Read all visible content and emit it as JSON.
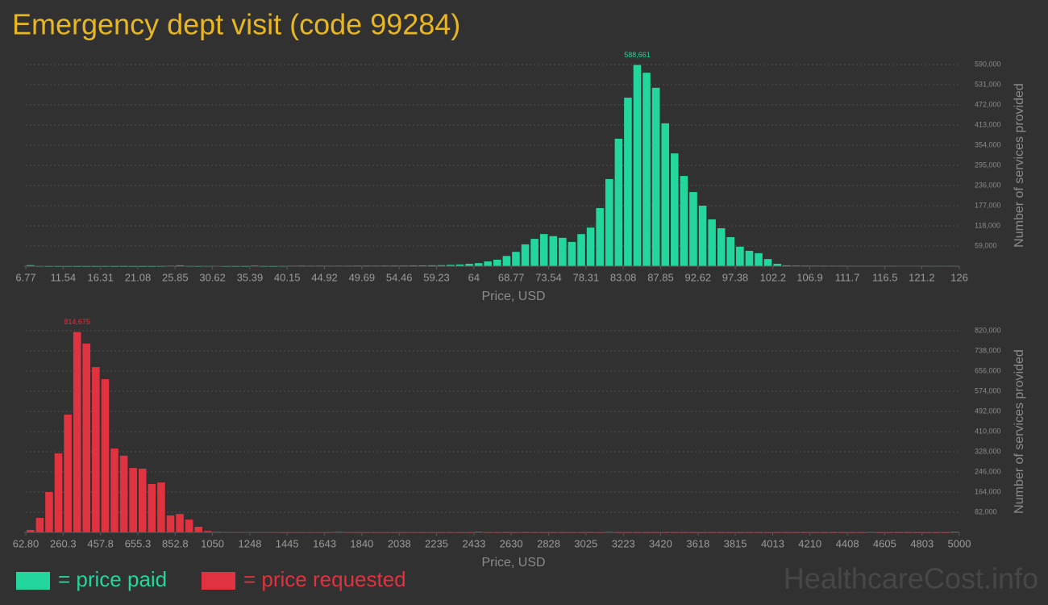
{
  "title": "Emergency dept visit (code 99284)",
  "watermark": "HealthcareCost.info",
  "chart_data": [
    {
      "type": "histogram",
      "name": "= price paid",
      "color": "#22d69c",
      "xlabel": "Price, USD",
      "ylabel": "Number of services provided",
      "bins": [
        6.77,
        7.96,
        9.15,
        10.35,
        11.54,
        12.73,
        13.92,
        15.12,
        16.31,
        17.5,
        18.69,
        19.89,
        21.08,
        22.27,
        23.46,
        24.65,
        25.85,
        27.04,
        28.23,
        29.42,
        30.62,
        31.81,
        33.0,
        34.19,
        35.39,
        36.58,
        37.77,
        38.96,
        40.15,
        41.35,
        42.54,
        43.73,
        44.92,
        46.12,
        47.31,
        48.5,
        49.69,
        50.89,
        52.08,
        53.27,
        54.46,
        55.65,
        56.85,
        58.04,
        59.23,
        60.42,
        61.62,
        62.81,
        64.0,
        65.19,
        66.38,
        67.58,
        68.77,
        69.96,
        71.15,
        72.35,
        73.54,
        74.73,
        75.92,
        77.12,
        78.31,
        79.5,
        80.69,
        81.89,
        83.08,
        84.27,
        85.46,
        86.65,
        87.85,
        89.04,
        90.23,
        91.42,
        92.62,
        93.81,
        95.0,
        96.19,
        97.38,
        98.58,
        99.77,
        100.96,
        102.15,
        103.35,
        104.54,
        105.73,
        106.92,
        108.12,
        109.31,
        110.5,
        111.69,
        112.88,
        114.08,
        115.27,
        116.46,
        117.65,
        118.85,
        120.04,
        121.23,
        122.42,
        123.62,
        124.81,
        126.0
      ],
      "values": [
        3000,
        800,
        600,
        500,
        500,
        400,
        400,
        400,
        500,
        400,
        400,
        400,
        400,
        400,
        600,
        1500,
        2500,
        800,
        600,
        900,
        1200,
        700,
        600,
        500,
        2000,
        600,
        500,
        800,
        1500,
        1800,
        1500,
        1600,
        1500,
        1500,
        1600,
        1700,
        1800,
        1700,
        1800,
        1900,
        2000,
        2200,
        2400,
        2600,
        3000,
        4000,
        5000,
        7000,
        9000,
        14000,
        19000,
        30000,
        42000,
        64000,
        80000,
        94000,
        88000,
        83000,
        71000,
        94000,
        113000,
        170000,
        255000,
        373000,
        493000,
        588661,
        566000,
        522000,
        418000,
        330000,
        264000,
        217000,
        177000,
        137000,
        111000,
        85000,
        57000,
        45000,
        38000,
        21000,
        7000,
        2500,
        2000,
        1800,
        1700,
        1600,
        1500,
        1500,
        1400,
        1400,
        1300,
        1300,
        1300,
        1200,
        1200,
        1200,
        1100,
        1100,
        1100,
        1000
      ],
      "value_labels": [
        null,
        null,
        null,
        null,
        null,
        null,
        null,
        null,
        null,
        null,
        null,
        null,
        null,
        null,
        null,
        null,
        null,
        null,
        null,
        null,
        null,
        null,
        null,
        null,
        null,
        null,
        null,
        null,
        null,
        null,
        null,
        null,
        null,
        null,
        null,
        null,
        null,
        null,
        null,
        null,
        null,
        null,
        null,
        null,
        null,
        null,
        null,
        null,
        null,
        null,
        null,
        null,
        null,
        null,
        null,
        null,
        null,
        null,
        null,
        null,
        null,
        null,
        null,
        null,
        null,
        "588,661",
        null,
        null,
        null,
        null,
        null,
        null,
        null,
        null,
        null,
        null,
        null,
        null,
        null,
        null,
        null,
        null,
        null,
        null,
        null,
        null,
        null,
        null,
        null,
        null,
        null,
        null,
        null,
        null,
        null,
        null,
        null,
        null,
        null,
        null
      ],
      "xlim": [
        6.77,
        126
      ],
      "xticks": [
        6.77,
        11.54,
        16.31,
        21.08,
        25.85,
        30.62,
        35.39,
        40.15,
        44.92,
        49.69,
        54.46,
        59.23,
        64,
        68.77,
        73.54,
        78.31,
        83.08,
        87.85,
        92.62,
        97.38,
        102.2,
        106.9,
        111.7,
        116.5,
        121.2,
        126
      ],
      "ylim": [
        0,
        590000
      ],
      "yticks": [
        {
          "value": 59000,
          "label": "59,000"
        },
        {
          "value": 118000,
          "label": "118,000"
        },
        {
          "value": 177000,
          "label": "177,000"
        },
        {
          "value": 236000,
          "label": "236,000"
        },
        {
          "value": 295000,
          "label": "295,000"
        },
        {
          "value": 354000,
          "label": "354,000"
        },
        {
          "value": 413000,
          "label": "413,000"
        },
        {
          "value": 472000,
          "label": "472,000"
        },
        {
          "value": 531000,
          "label": "531,000"
        },
        {
          "value": 590000,
          "label": "590,000"
        }
      ],
      "grid": true
    },
    {
      "type": "histogram",
      "name": "= price requested",
      "color": "#e0323f",
      "xlabel": "Price, USD",
      "ylabel": "Number of services provided",
      "bins": [
        62.8,
        112.17,
        161.54,
        210.92,
        260.29,
        309.66,
        359.03,
        408.4,
        457.78,
        507.15,
        556.52,
        605.89,
        655.26,
        704.64,
        754.01,
        803.38,
        852.75,
        902.12,
        951.5,
        1000.87,
        1050.24,
        1099.61,
        1148.98,
        1198.36,
        1247.73,
        1297.1,
        1346.47,
        1395.84,
        1445.22,
        1494.59,
        1543.96,
        1593.33,
        1642.7,
        1692.08,
        1741.45,
        1790.82,
        1840.19,
        1889.56,
        1938.94,
        1988.31,
        2037.68,
        2087.05,
        2136.42,
        2185.8,
        2235.17,
        2284.54,
        2333.91,
        2383.28,
        2432.66,
        2482.03,
        2531.4,
        2580.77,
        2630.14,
        2679.52,
        2728.89,
        2778.26,
        2827.63,
        2877.0,
        2926.38,
        2975.75,
        3025.12,
        3074.49,
        3123.86,
        3173.24,
        3222.61,
        3271.98,
        3321.35,
        3370.72,
        3420.1,
        3469.47,
        3518.84,
        3568.21,
        3617.58,
        3666.96,
        3716.33,
        3765.7,
        3815.07,
        3864.44,
        3913.82,
        3963.19,
        4012.56,
        4061.93,
        4111.3,
        4160.68,
        4210.05,
        4259.42,
        4308.79,
        4358.16,
        4407.54,
        4456.91,
        4506.28,
        4555.65,
        4605.02,
        4654.4,
        4703.77,
        4753.14,
        4802.51,
        4851.88,
        4901.26,
        4950.63,
        5000.0
      ],
      "values": [
        10000,
        59000,
        164000,
        321000,
        479000,
        814675,
        768000,
        672000,
        623000,
        341000,
        312000,
        262000,
        259000,
        197000,
        203000,
        69000,
        75000,
        52000,
        23000,
        6000,
        3000,
        2000,
        1500,
        1500,
        2000,
        1500,
        1200,
        1000,
        1000,
        1000,
        1000,
        1000,
        1000,
        3000,
        1000,
        800,
        800,
        800,
        800,
        800,
        800,
        800,
        800,
        800,
        700,
        700,
        700,
        700,
        3500,
        700,
        600,
        600,
        600,
        600,
        600,
        600,
        600,
        600,
        600,
        600,
        600,
        600,
        3000,
        500,
        500,
        500,
        500,
        500,
        500,
        500,
        500,
        500,
        500,
        500,
        500,
        500,
        500,
        500,
        500,
        500,
        500,
        500,
        500,
        500,
        500,
        500,
        500,
        500,
        500,
        500,
        2500,
        400,
        400,
        400,
        400,
        400,
        400,
        400,
        400,
        3000
      ],
      "value_labels": [
        null,
        null,
        null,
        null,
        null,
        "814,675",
        null,
        null,
        null,
        null,
        null,
        null,
        null,
        null,
        null,
        null,
        null,
        null,
        null,
        null,
        null,
        null,
        null,
        null,
        null,
        null,
        null,
        null,
        null,
        null,
        null,
        null,
        null,
        null,
        null,
        null,
        null,
        null,
        null,
        null,
        null,
        null,
        null,
        null,
        null,
        null,
        null,
        null,
        null,
        null,
        null,
        null,
        null,
        null,
        null,
        null,
        null,
        null,
        null,
        null,
        null,
        null,
        null,
        null,
        null,
        null,
        null,
        null,
        null,
        null,
        null,
        null,
        null,
        null,
        null,
        null,
        null,
        null,
        null,
        null,
        null,
        null,
        null,
        null,
        null,
        null,
        null,
        null,
        null,
        null,
        null,
        null,
        null,
        null,
        null,
        null,
        null,
        null,
        null,
        null
      ],
      "xlim": [
        62.8,
        5000
      ],
      "xticks": [
        {
          "value": 62.8,
          "label": "62.80"
        },
        260.3,
        457.8,
        655.3,
        852.8,
        1050,
        1248,
        1445,
        1643,
        1840,
        2038,
        2235,
        2433,
        2630,
        2828,
        3025,
        3223,
        3420,
        3618,
        3815,
        4013,
        4210,
        4408,
        4605,
        4803,
        5000
      ],
      "ylim": [
        0,
        820000
      ],
      "yticks": [
        {
          "value": 82000,
          "label": "82,000"
        },
        {
          "value": 164000,
          "label": "164,000"
        },
        {
          "value": 246000,
          "label": "246,000"
        },
        {
          "value": 328000,
          "label": "328,000"
        },
        {
          "value": 410000,
          "label": "410,000"
        },
        {
          "value": 492000,
          "label": "492,000"
        },
        {
          "value": 574000,
          "label": "574,000"
        },
        {
          "value": 656000,
          "label": "656,000"
        },
        {
          "value": 738000,
          "label": "738,000"
        },
        {
          "value": 820000,
          "label": "820,000"
        }
      ],
      "grid": true
    }
  ]
}
